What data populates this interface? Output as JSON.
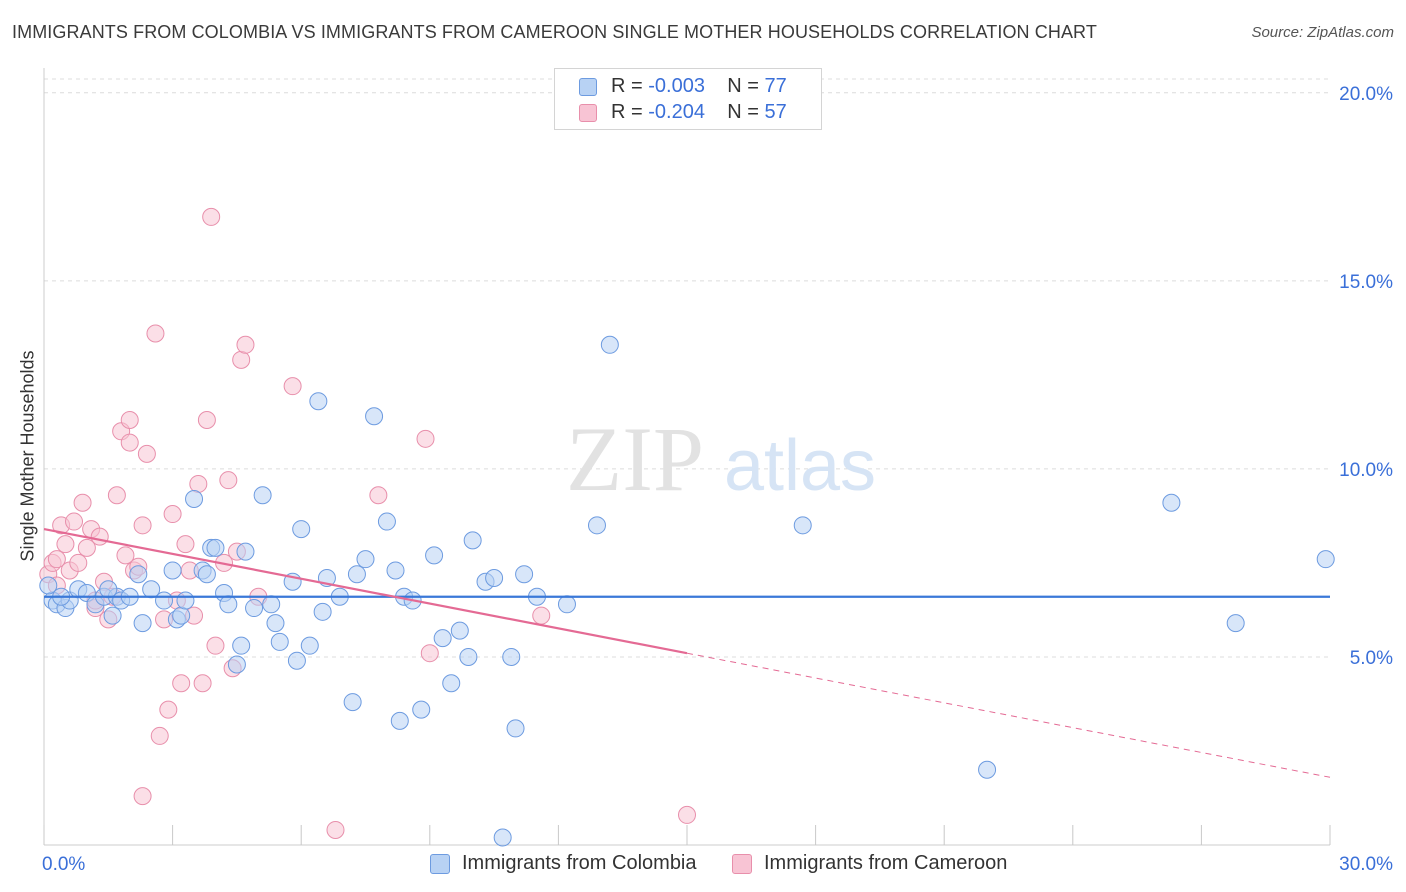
{
  "title": "IMMIGRANTS FROM COLOMBIA VS IMMIGRANTS FROM CAMEROON SINGLE MOTHER HOUSEHOLDS CORRELATION CHART",
  "source": "Source: ZipAtlas.com",
  "watermark": {
    "zip": "ZIP",
    "atlas": "atlas"
  },
  "legend": {
    "r_label": "R =",
    "n_label": "N =",
    "rows": [
      {
        "r": "-0.003",
        "n": "77"
      },
      {
        "r": "-0.204",
        "n": "57"
      }
    ]
  },
  "colors": {
    "colombia_fill": "#b8d2f4",
    "colombia_stroke": "#6d9be0",
    "colombia_line": "#3a78d8",
    "cameroon_fill": "#f8c4d4",
    "cameroon_stroke": "#e88fab",
    "cameroon_line": "#e46a94",
    "tick_label": "#3a6fd8",
    "grid": "#dcdcdc"
  },
  "chart_data": {
    "type": "scatter",
    "title": "IMMIGRANTS FROM COLOMBIA VS IMMIGRANTS FROM CAMEROON SINGLE MOTHER HOUSEHOLDS CORRELATION CHART",
    "xlabel": "",
    "ylabel": "Single Mother Households",
    "xlim": [
      0,
      30
    ],
    "ylim": [
      0,
      20.5
    ],
    "x_tick_labels": [
      {
        "value": 0,
        "label": "0.0%"
      },
      {
        "value": 30,
        "label": "30.0%"
      }
    ],
    "y_ticks": [
      {
        "value": 5,
        "label": "5.0%"
      },
      {
        "value": 10,
        "label": "10.0%"
      },
      {
        "value": 15,
        "label": "15.0%"
      },
      {
        "value": 20,
        "label": "20.0%"
      }
    ],
    "x_minor_ticks": [
      0,
      3,
      6,
      9,
      12,
      15,
      18,
      21,
      24,
      27,
      30
    ],
    "grid": "horizontal-dashed",
    "legend_placement": "top-center",
    "series": [
      {
        "name": "Immigrants from Colombia",
        "r": -0.003,
        "n": 77,
        "trend": {
          "x": [
            0,
            30
          ],
          "y": [
            6.6,
            6.6
          ],
          "style": "solid"
        },
        "points": [
          [
            0.2,
            6.5
          ],
          [
            0.3,
            6.4
          ],
          [
            0.5,
            6.3
          ],
          [
            0.6,
            6.5
          ],
          [
            0.8,
            6.8
          ],
          [
            1.0,
            6.7
          ],
          [
            1.2,
            6.4
          ],
          [
            1.4,
            6.6
          ],
          [
            1.6,
            6.1
          ],
          [
            1.7,
            6.6
          ],
          [
            1.8,
            6.5
          ],
          [
            2.0,
            6.6
          ],
          [
            2.3,
            5.9
          ],
          [
            2.5,
            6.8
          ],
          [
            2.8,
            6.5
          ],
          [
            3.0,
            7.3
          ],
          [
            3.1,
            6.0
          ],
          [
            3.2,
            6.1
          ],
          [
            3.5,
            9.2
          ],
          [
            3.7,
            7.3
          ],
          [
            3.8,
            7.2
          ],
          [
            3.9,
            7.9
          ],
          [
            4.0,
            7.9
          ],
          [
            4.2,
            6.7
          ],
          [
            4.3,
            6.4
          ],
          [
            4.5,
            4.8
          ],
          [
            4.6,
            5.3
          ],
          [
            4.7,
            7.8
          ],
          [
            4.9,
            6.3
          ],
          [
            5.1,
            9.3
          ],
          [
            5.3,
            6.4
          ],
          [
            5.4,
            5.9
          ],
          [
            5.5,
            5.4
          ],
          [
            5.8,
            7.0
          ],
          [
            5.9,
            4.9
          ],
          [
            6.0,
            8.4
          ],
          [
            6.2,
            5.3
          ],
          [
            6.5,
            6.2
          ],
          [
            6.6,
            7.1
          ],
          [
            6.9,
            6.6
          ],
          [
            6.4,
            11.8
          ],
          [
            7.2,
            3.8
          ],
          [
            7.3,
            7.2
          ],
          [
            7.5,
            7.6
          ],
          [
            7.7,
            11.4
          ],
          [
            8.0,
            8.6
          ],
          [
            8.2,
            7.3
          ],
          [
            8.3,
            3.3
          ],
          [
            8.4,
            6.6
          ],
          [
            8.6,
            6.5
          ],
          [
            8.8,
            3.6
          ],
          [
            9.1,
            7.7
          ],
          [
            9.3,
            5.5
          ],
          [
            9.5,
            4.3
          ],
          [
            9.7,
            5.7
          ],
          [
            9.9,
            5.0
          ],
          [
            10.0,
            8.1
          ],
          [
            10.3,
            7.0
          ],
          [
            10.5,
            7.1
          ],
          [
            10.7,
            0.2
          ],
          [
            10.9,
            5.0
          ],
          [
            11.0,
            3.1
          ],
          [
            11.2,
            7.2
          ],
          [
            11.5,
            6.6
          ],
          [
            12.2,
            6.4
          ],
          [
            12.9,
            8.5
          ],
          [
            13.2,
            13.3
          ],
          [
            17.7,
            8.5
          ],
          [
            22.0,
            2.0
          ],
          [
            26.3,
            9.1
          ],
          [
            27.8,
            5.9
          ],
          [
            29.9,
            7.6
          ],
          [
            0.1,
            6.9
          ],
          [
            0.4,
            6.6
          ],
          [
            1.5,
            6.8
          ],
          [
            2.2,
            7.2
          ],
          [
            3.3,
            6.5
          ]
        ]
      },
      {
        "name": "Immigrants from Cameroon",
        "r": -0.204,
        "n": 57,
        "trend": {
          "x": [
            0,
            15
          ],
          "y": [
            8.4,
            5.1
          ],
          "style": "solid",
          "dashed_extension": {
            "x": [
              15,
              30
            ],
            "y": [
              5.1,
              1.8
            ]
          }
        },
        "points": [
          [
            0.1,
            7.2
          ],
          [
            0.2,
            7.5
          ],
          [
            0.3,
            7.6
          ],
          [
            0.4,
            8.5
          ],
          [
            0.5,
            8.0
          ],
          [
            0.6,
            7.3
          ],
          [
            0.7,
            8.6
          ],
          [
            0.8,
            7.5
          ],
          [
            0.9,
            9.1
          ],
          [
            1.0,
            7.9
          ],
          [
            1.1,
            8.4
          ],
          [
            1.2,
            6.3
          ],
          [
            1.3,
            8.2
          ],
          [
            1.4,
            7.0
          ],
          [
            1.5,
            6.0
          ],
          [
            1.6,
            6.6
          ],
          [
            1.7,
            9.3
          ],
          [
            1.8,
            11.0
          ],
          [
            1.9,
            7.7
          ],
          [
            2.0,
            10.7
          ],
          [
            2.1,
            7.3
          ],
          [
            2.2,
            7.4
          ],
          [
            2.3,
            8.5
          ],
          [
            2.4,
            10.4
          ],
          [
            2.0,
            11.3
          ],
          [
            2.6,
            13.6
          ],
          [
            2.7,
            2.9
          ],
          [
            2.8,
            6.0
          ],
          [
            2.9,
            3.6
          ],
          [
            2.3,
            1.3
          ],
          [
            3.0,
            8.8
          ],
          [
            3.1,
            6.5
          ],
          [
            3.2,
            4.3
          ],
          [
            3.3,
            8.0
          ],
          [
            3.4,
            7.3
          ],
          [
            3.5,
            6.1
          ],
          [
            3.6,
            9.6
          ],
          [
            3.7,
            4.3
          ],
          [
            3.8,
            11.3
          ],
          [
            3.9,
            16.7
          ],
          [
            4.0,
            5.3
          ],
          [
            4.2,
            7.5
          ],
          [
            4.3,
            9.7
          ],
          [
            4.4,
            4.7
          ],
          [
            4.5,
            7.8
          ],
          [
            4.6,
            12.9
          ],
          [
            4.7,
            13.3
          ],
          [
            5.0,
            6.6
          ],
          [
            5.8,
            12.2
          ],
          [
            6.8,
            0.4
          ],
          [
            7.8,
            9.3
          ],
          [
            8.9,
            10.8
          ],
          [
            9.0,
            5.1
          ],
          [
            11.6,
            6.1
          ],
          [
            15.0,
            0.8
          ],
          [
            0.3,
            6.9
          ],
          [
            1.2,
            6.5
          ]
        ]
      }
    ]
  },
  "bottom_legend": [
    {
      "label": "Immigrants from Colombia"
    },
    {
      "label": "Immigrants from Cameroon"
    }
  ]
}
